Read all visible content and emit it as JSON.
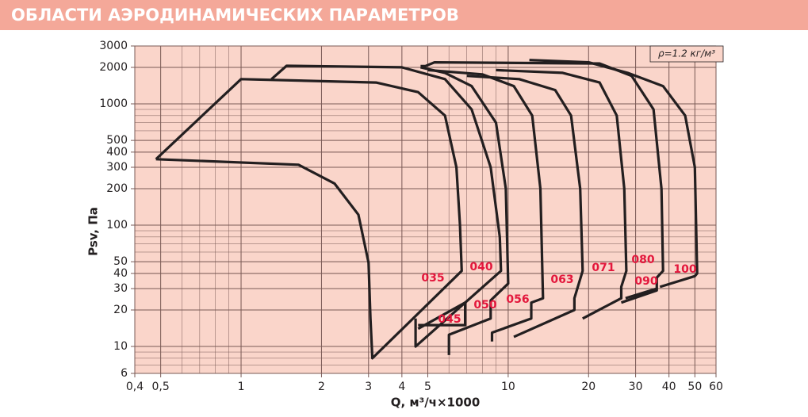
{
  "header": {
    "title": "ОБЛАСТИ АЭРОДИНАМИЧЕСКИХ ПАРАМЕТРОВ"
  },
  "chart_data": {
    "type": "line",
    "x_label": "Q, м³/ч×1000",
    "y_label": "Psv, Па",
    "annotation": "ρ=1.2 кг/м³",
    "log_x": true,
    "log_y": true,
    "grid": "minor",
    "xlim": [
      0.4,
      60
    ],
    "ylim": [
      6,
      3000
    ],
    "xticks": [
      {
        "value": 0.4,
        "label": "0,4"
      },
      {
        "value": 0.5,
        "label": "0,5"
      },
      1,
      2,
      3,
      4,
      5,
      10,
      20,
      30,
      40,
      50,
      60
    ],
    "yticks": [
      6,
      10,
      20,
      30,
      40,
      50,
      100,
      200,
      300,
      400,
      500,
      1000,
      2000,
      3000
    ],
    "label_color": "#e3173c",
    "series": [
      {
        "name": "035",
        "color": "#231f20",
        "x": [
          0.48,
          1.0,
          3.2,
          4.6,
          5.8,
          6.4,
          6.6,
          6.7,
          3.1,
          3.05,
          3.0,
          2.75,
          2.24,
          1.64,
          0.48
        ],
        "values": [
          350,
          1600,
          1500,
          1250,
          800,
          300,
          100,
          42,
          8,
          17,
          49,
          122,
          220,
          315,
          350
        ]
      },
      {
        "name": "040",
        "color": "#231f20",
        "x": [
          1.3,
          1.48,
          4.0,
          5.8,
          7.3,
          8.6,
          9.3,
          9.4,
          4.5,
          4.5
        ],
        "values": [
          1600,
          2060,
          2000,
          1600,
          900,
          300,
          80,
          42,
          10,
          17
        ]
      },
      {
        "name": "045",
        "color": "#231f20",
        "x": [
          4.6,
          6.9,
          6.9,
          4.6
        ],
        "values": [
          14,
          23,
          15,
          15
        ]
      },
      {
        "name": "050",
        "color": "#231f20",
        "x": [
          6.0,
          6.0,
          8.6,
          8.6,
          10.0,
          9.8,
          9.0,
          7.3,
          5.8,
          4.7
        ],
        "values": [
          8.5,
          12.5,
          17,
          24,
          33,
          200,
          700,
          1400,
          1800,
          2000
        ]
      },
      {
        "name": "056",
        "color": "#231f20",
        "x": [
          8.7,
          8.7,
          12.2,
          12.2,
          13.5,
          13.2,
          12.3,
          10.5,
          8.0,
          5.0
        ],
        "values": [
          11,
          13,
          17,
          23,
          25,
          200,
          800,
          1400,
          1750,
          1900
        ]
      },
      {
        "name": "063",
        "color": "#231f20",
        "x": [
          10.5,
          17.7,
          17.7,
          19.0,
          18.6,
          17.2,
          15,
          11,
          7
        ],
        "values": [
          12,
          20,
          25,
          42,
          200,
          800,
          1300,
          1600,
          1700
        ]
      },
      {
        "name": "071",
        "color": "#231f20",
        "x": [
          19.0,
          26.5,
          26.5,
          27.7,
          27.2,
          25.5,
          22,
          16,
          9
        ],
        "values": [
          17,
          25,
          31,
          42,
          200,
          800,
          1500,
          1800,
          1900
        ]
      },
      {
        "name": "080",
        "color": "#231f20",
        "x": [
          26.5,
          36,
          36,
          38,
          37.5,
          35,
          29,
          22,
          5.3,
          4.9,
          4.7
        ],
        "values": [
          23,
          29,
          37,
          42,
          200,
          900,
          1700,
          2150,
          2200,
          2050,
          2050
        ]
      },
      {
        "name": "090",
        "color": "#231f20",
        "x": [
          27.5,
          36
        ],
        "values": [
          25,
          30
        ]
      },
      {
        "name": "100",
        "color": "#231f20",
        "x": [
          37,
          50,
          51,
          50,
          46,
          38,
          28,
          20,
          12
        ],
        "values": [
          31,
          38,
          40,
          300,
          800,
          1400,
          1800,
          2200,
          2300
        ]
      }
    ]
  }
}
